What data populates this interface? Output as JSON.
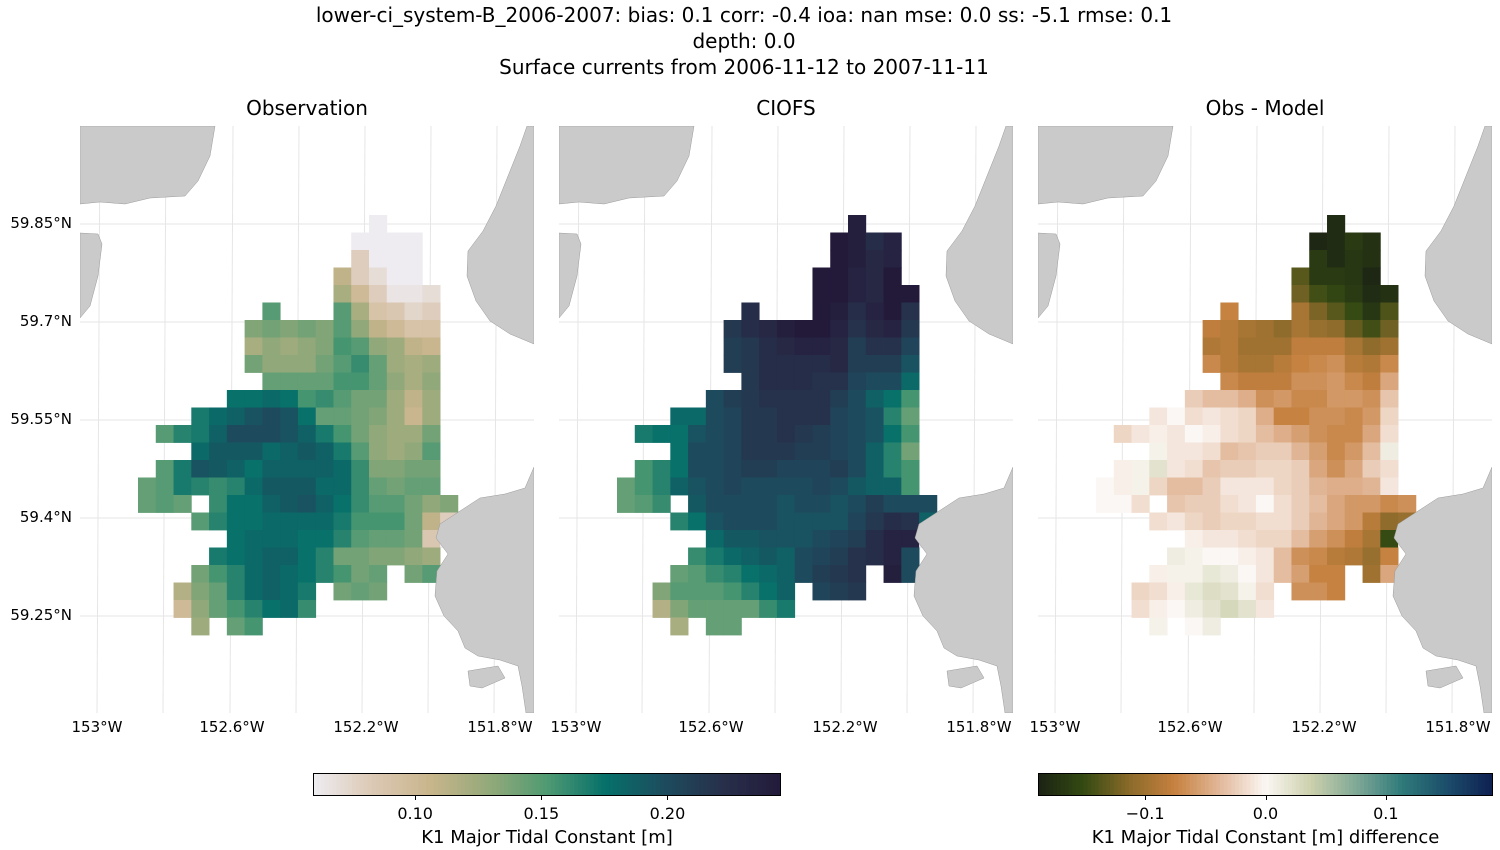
{
  "title": {
    "line1": "lower-ci_system-B_2006-2007: bias: 0.1  corr: -0.4  ioa: nan  mse: 0.0  ss: -5.1  rmse: 0.1",
    "line2": "depth: 0.0",
    "line3": "Surface currents from 2006-11-12 to 2007-11-11"
  },
  "panels": [
    {
      "title": "Observation"
    },
    {
      "title": "CIOFS"
    },
    {
      "title": "Obs - Model"
    }
  ],
  "lat_ticks": [
    "59.85°N",
    "59.7°N",
    "59.55°N",
    "59.4°N",
    "59.25°N"
  ],
  "lon_ticks": [
    "153°W",
    "152.6°W",
    "152.2°W",
    "151.8°W"
  ],
  "colorbars": {
    "main": {
      "label": "K1 Major Tidal Constant [m]",
      "ticks": [
        "0.10",
        "0.15",
        "0.20"
      ],
      "tick_values": [
        0.1,
        0.15,
        0.2
      ],
      "range": [
        0.0595,
        0.245
      ]
    },
    "diff": {
      "label": "K1 Major Tidal Constant [m] difference",
      "ticks": [
        "−0.1",
        "0.0",
        "0.1"
      ],
      "tick_values": [
        -0.1,
        0.0,
        0.1
      ],
      "range": [
        -0.189,
        0.189
      ]
    }
  },
  "colors": {
    "land": "#cacaca",
    "grid": "#e6e6e6"
  },
  "chart_data": {
    "type": "heatmap",
    "grid_note_rows": "north to south",
    "colormaps": {
      "main": [
        "#eeedf2",
        "#dcc9b5",
        "#c9b58c",
        "#94a97a",
        "#4f9a72",
        "#06706a",
        "#1d4c5e",
        "#27304a",
        "#231a3a"
      ],
      "diff": [
        "#1b2214",
        "#334a12",
        "#8a6a2a",
        "#c6813f",
        "#e2b89a",
        "#fbf7f4",
        "#ccd0ac",
        "#7fa896",
        "#2f7a7a",
        "#1b4d6a",
        "#0f1f52"
      ]
    },
    "observation": [
      [
        null,
        null,
        null,
        null,
        null,
        null,
        null,
        null,
        null,
        null,
        null,
        null,
        null,
        0.06,
        null,
        null,
        null,
        null
      ],
      [
        null,
        null,
        null,
        null,
        null,
        null,
        null,
        null,
        null,
        null,
        null,
        null,
        0.06,
        0.06,
        0.06,
        0.06,
        null,
        null
      ],
      [
        null,
        null,
        null,
        null,
        null,
        null,
        null,
        null,
        null,
        null,
        null,
        null,
        0.08,
        0.06,
        0.06,
        0.06,
        null,
        null
      ],
      [
        null,
        null,
        null,
        null,
        null,
        null,
        null,
        null,
        null,
        null,
        null,
        0.11,
        0.08,
        0.07,
        0.06,
        0.06,
        null,
        null
      ],
      [
        null,
        null,
        null,
        null,
        null,
        null,
        null,
        null,
        null,
        null,
        null,
        0.12,
        0.1,
        0.08,
        0.065,
        0.065,
        0.07,
        null
      ],
      [
        null,
        null,
        null,
        null,
        null,
        null,
        null,
        0.15,
        null,
        null,
        null,
        0.15,
        0.12,
        0.09,
        0.085,
        0.075,
        0.08,
        null
      ],
      [
        null,
        null,
        null,
        null,
        null,
        null,
        0.135,
        0.14,
        0.135,
        0.14,
        0.135,
        0.15,
        0.13,
        0.11,
        0.1,
        0.09,
        0.09,
        null
      ],
      [
        null,
        null,
        null,
        null,
        null,
        null,
        0.12,
        0.13,
        0.125,
        0.13,
        0.135,
        0.155,
        0.15,
        0.13,
        0.125,
        0.11,
        0.105,
        null
      ],
      [
        null,
        null,
        null,
        null,
        null,
        null,
        0.14,
        0.13,
        0.13,
        0.13,
        0.14,
        0.15,
        0.16,
        0.145,
        0.125,
        0.12,
        0.125,
        null
      ],
      [
        null,
        null,
        null,
        null,
        null,
        null,
        null,
        0.145,
        0.145,
        0.145,
        0.145,
        0.155,
        0.155,
        0.145,
        0.13,
        0.12,
        0.13,
        null
      ],
      [
        null,
        null,
        null,
        null,
        null,
        0.175,
        0.175,
        0.18,
        0.175,
        0.155,
        0.16,
        0.15,
        0.14,
        0.14,
        0.125,
        0.11,
        0.125,
        null
      ],
      [
        null,
        null,
        null,
        0.17,
        0.18,
        0.185,
        0.195,
        0.2,
        0.195,
        0.175,
        0.145,
        0.145,
        0.14,
        0.135,
        0.125,
        0.105,
        0.125,
        null
      ],
      [
        null,
        0.15,
        0.165,
        0.17,
        0.185,
        0.2,
        0.2,
        0.2,
        0.195,
        0.185,
        0.17,
        0.155,
        0.14,
        0.13,
        0.125,
        0.125,
        0.14,
        null
      ],
      [
        null,
        null,
        null,
        0.18,
        0.19,
        0.19,
        0.19,
        0.18,
        0.185,
        0.19,
        0.185,
        0.17,
        0.15,
        0.13,
        0.125,
        0.13,
        0.15,
        null
      ],
      [
        null,
        0.15,
        0.17,
        0.195,
        0.19,
        0.185,
        0.175,
        0.185,
        0.185,
        0.185,
        0.185,
        0.18,
        0.16,
        0.135,
        0.135,
        0.14,
        0.14,
        null
      ],
      [
        0.145,
        0.15,
        0.17,
        0.165,
        0.16,
        0.165,
        0.18,
        0.19,
        0.19,
        0.19,
        0.18,
        0.18,
        0.16,
        0.145,
        0.14,
        0.145,
        0.145,
        null
      ],
      [
        0.145,
        0.15,
        0.145,
        null,
        0.16,
        0.175,
        0.175,
        0.185,
        0.19,
        0.195,
        0.185,
        0.175,
        0.16,
        0.15,
        0.15,
        0.14,
        0.13,
        0.135
      ],
      [
        null,
        null,
        null,
        0.15,
        0.165,
        0.175,
        0.175,
        0.18,
        0.18,
        0.18,
        0.18,
        0.17,
        0.155,
        0.155,
        0.155,
        0.14,
        0.11,
        0.08
      ],
      [
        null,
        null,
        null,
        null,
        null,
        0.175,
        0.18,
        0.18,
        0.18,
        0.175,
        0.175,
        0.165,
        0.15,
        0.145,
        0.145,
        0.14,
        0.085,
        0.06
      ],
      [
        null,
        null,
        null,
        null,
        0.17,
        0.175,
        0.18,
        0.185,
        0.185,
        0.175,
        0.165,
        0.14,
        0.14,
        0.135,
        0.135,
        0.13,
        0.125,
        null
      ],
      [
        null,
        null,
        null,
        0.14,
        0.155,
        0.165,
        0.18,
        0.185,
        0.18,
        0.175,
        0.165,
        0.155,
        0.14,
        0.145,
        null,
        0.14,
        0.15,
        null
      ],
      [
        null,
        null,
        0.115,
        0.135,
        0.145,
        0.165,
        0.18,
        0.185,
        0.18,
        0.17,
        null,
        0.14,
        0.145,
        0.14,
        null,
        null,
        null,
        null
      ],
      [
        null,
        null,
        0.1,
        0.13,
        0.145,
        0.155,
        0.165,
        0.175,
        0.18,
        0.16,
        null,
        null,
        null,
        null,
        null,
        null,
        null,
        null
      ],
      [
        null,
        null,
        null,
        0.125,
        null,
        0.145,
        0.155,
        null,
        null,
        null,
        null,
        null,
        null,
        null,
        null,
        null,
        null,
        null
      ]
    ],
    "model": [
      [
        null,
        null,
        null,
        null,
        null,
        null,
        null,
        null,
        null,
        null,
        null,
        null,
        null,
        0.24,
        null,
        null,
        null,
        null
      ],
      [
        null,
        null,
        null,
        null,
        null,
        null,
        null,
        null,
        null,
        null,
        null,
        null,
        0.245,
        0.24,
        0.225,
        0.235,
        null,
        null
      ],
      [
        null,
        null,
        null,
        null,
        null,
        null,
        null,
        null,
        null,
        null,
        null,
        null,
        0.245,
        0.24,
        0.23,
        0.235,
        null,
        null
      ],
      [
        null,
        null,
        null,
        null,
        null,
        null,
        null,
        null,
        null,
        null,
        null,
        0.245,
        0.245,
        0.235,
        0.23,
        0.245,
        null,
        null
      ],
      [
        null,
        null,
        null,
        null,
        null,
        null,
        null,
        null,
        null,
        null,
        null,
        0.245,
        0.245,
        0.235,
        0.23,
        0.245,
        0.245,
        null
      ],
      [
        null,
        null,
        null,
        null,
        null,
        null,
        null,
        0.225,
        null,
        null,
        null,
        0.245,
        0.24,
        0.225,
        0.235,
        0.245,
        0.22,
        null
      ],
      [
        null,
        null,
        null,
        null,
        null,
        null,
        0.215,
        0.225,
        0.23,
        0.24,
        0.245,
        0.245,
        0.235,
        0.22,
        0.23,
        0.235,
        0.215,
        null
      ],
      [
        null,
        null,
        null,
        null,
        null,
        null,
        0.21,
        0.215,
        0.225,
        0.23,
        0.235,
        0.235,
        0.23,
        0.21,
        0.22,
        0.22,
        0.205,
        null
      ],
      [
        null,
        null,
        null,
        null,
        null,
        null,
        0.21,
        0.215,
        0.225,
        0.225,
        0.225,
        0.225,
        0.23,
        0.21,
        0.21,
        0.21,
        0.195,
        null
      ],
      [
        null,
        null,
        null,
        null,
        null,
        null,
        null,
        0.215,
        0.225,
        0.225,
        0.225,
        0.22,
        0.22,
        0.205,
        0.2,
        0.2,
        0.18,
        null
      ],
      [
        null,
        null,
        null,
        null,
        null,
        0.2,
        0.21,
        0.215,
        0.22,
        0.22,
        0.22,
        0.22,
        0.21,
        0.2,
        0.185,
        0.175,
        0.155,
        null
      ],
      [
        null,
        null,
        null,
        0.18,
        0.18,
        0.2,
        0.205,
        0.215,
        0.215,
        0.22,
        0.22,
        0.22,
        0.205,
        0.2,
        0.195,
        0.165,
        0.145,
        null
      ],
      [
        null,
        0.17,
        0.175,
        0.175,
        0.195,
        0.2,
        0.205,
        0.215,
        0.215,
        0.22,
        0.215,
        0.21,
        0.205,
        0.2,
        0.195,
        0.175,
        0.155,
        null
      ],
      [
        null,
        null,
        null,
        0.175,
        0.2,
        0.2,
        0.205,
        0.215,
        0.215,
        0.215,
        0.21,
        0.21,
        0.205,
        0.2,
        0.185,
        0.165,
        0.14,
        null
      ],
      [
        null,
        0.155,
        0.165,
        0.175,
        0.2,
        0.2,
        0.205,
        0.21,
        0.21,
        0.205,
        0.205,
        0.205,
        0.21,
        0.2,
        0.185,
        0.165,
        0.155,
        null
      ],
      [
        0.145,
        0.155,
        0.165,
        0.185,
        0.195,
        0.2,
        0.205,
        0.2,
        0.2,
        0.2,
        0.2,
        0.205,
        0.2,
        0.19,
        0.185,
        0.185,
        0.155,
        null
      ],
      [
        0.145,
        0.15,
        0.16,
        null,
        0.19,
        0.2,
        0.2,
        0.2,
        0.2,
        0.195,
        0.2,
        0.2,
        0.195,
        0.2,
        0.21,
        0.2,
        0.2,
        0.2
      ],
      [
        null,
        null,
        null,
        0.165,
        0.175,
        0.195,
        0.2,
        0.2,
        0.2,
        0.195,
        0.195,
        0.195,
        0.195,
        0.205,
        0.215,
        0.225,
        0.22,
        0.185
      ],
      [
        null,
        null,
        null,
        null,
        null,
        0.18,
        0.19,
        0.19,
        0.195,
        0.195,
        0.195,
        0.2,
        0.205,
        0.21,
        0.225,
        0.235,
        0.235,
        0.06
      ],
      [
        null,
        null,
        null,
        null,
        0.16,
        0.17,
        0.18,
        0.185,
        0.19,
        0.185,
        0.2,
        0.205,
        0.21,
        0.22,
        0.225,
        0.235,
        0.2,
        null
      ],
      [
        null,
        null,
        null,
        0.145,
        0.15,
        0.16,
        0.165,
        0.175,
        0.18,
        0.185,
        0.2,
        0.21,
        0.215,
        0.22,
        null,
        0.24,
        0.2,
        null
      ],
      [
        null,
        null,
        0.135,
        0.15,
        0.15,
        0.15,
        0.155,
        0.165,
        0.175,
        0.185,
        null,
        0.205,
        0.21,
        0.215,
        null,
        null,
        null,
        null
      ],
      [
        null,
        null,
        0.115,
        0.135,
        0.145,
        0.145,
        0.145,
        0.145,
        0.16,
        0.17,
        null,
        null,
        null,
        null,
        null,
        null,
        null,
        null
      ],
      [
        null,
        null,
        null,
        0.12,
        null,
        0.145,
        0.145,
        null,
        null,
        null,
        null,
        null,
        null,
        null,
        null,
        null,
        null,
        null
      ]
    ]
  }
}
